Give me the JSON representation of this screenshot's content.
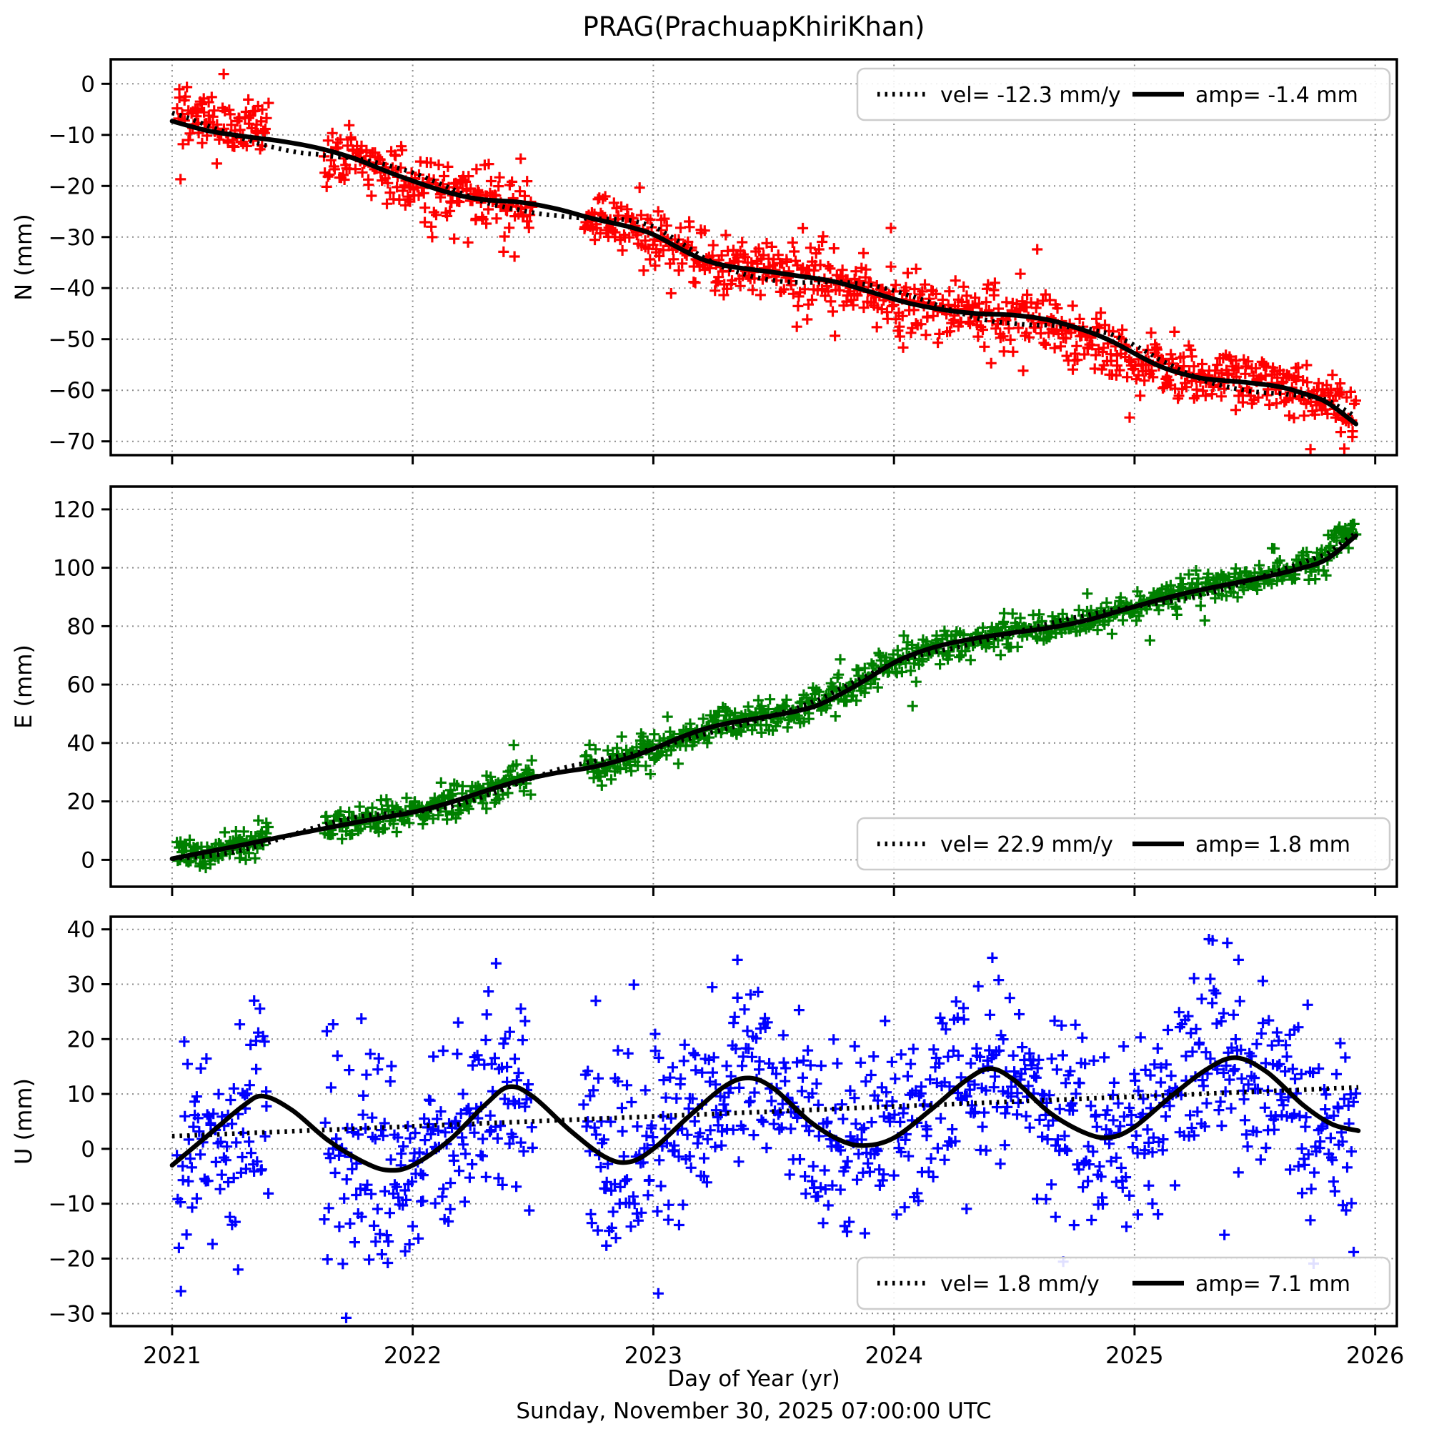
{
  "title": "PRAG(PrachuapKhiriKhan)",
  "xlabel": "Day of Year (yr)",
  "caption": "Sunday, November 30, 2025 07:00:00 UTC",
  "x_ticks": [
    2021,
    2022,
    2023,
    2024,
    2025,
    2026
  ],
  "x_range": [
    2020.745,
    2026.09
  ],
  "colors": {
    "n_marker": "#ff0000",
    "e_marker": "#008000",
    "u_marker": "#0000ff",
    "fit_line": "#000000",
    "grid": "#8a8a8a",
    "legend_edge": "#cccccc"
  },
  "chart_data": [
    {
      "type": "scatter+fit",
      "series_name": "N",
      "ylabel": "N (mm)",
      "ylim": [
        -72.7,
        4.8
      ],
      "yticks": [
        0,
        -10,
        -20,
        -30,
        -40,
        -50,
        -60,
        -70
      ],
      "marker_color": "#ff0000",
      "vel_mm_per_yr": -12.3,
      "seasonal_amp_mm": -1.4,
      "legend": {
        "position": "tr",
        "vel_label": "vel= -12.3 mm/y",
        "amp_label": "amp= -1.4 mm"
      },
      "fit_curve": [
        [
          2021.0,
          -7.3
        ],
        [
          2021.15,
          -9.2
        ],
        [
          2021.3,
          -10.3
        ],
        [
          2021.45,
          -11.2
        ],
        [
          2021.6,
          -12.5
        ],
        [
          2021.75,
          -14.5
        ],
        [
          2021.9,
          -17.3
        ],
        [
          2022.0,
          -19.0
        ],
        [
          2022.1,
          -20.6
        ],
        [
          2022.2,
          -21.9
        ],
        [
          2022.3,
          -22.7
        ],
        [
          2022.45,
          -23.2
        ],
        [
          2022.6,
          -24.5
        ],
        [
          2022.75,
          -26.4
        ],
        [
          2022.9,
          -28.0
        ],
        [
          2023.0,
          -29.5
        ],
        [
          2023.1,
          -32.0
        ],
        [
          2023.2,
          -34.3
        ],
        [
          2023.3,
          -35.6
        ],
        [
          2023.4,
          -36.3
        ],
        [
          2023.5,
          -36.9
        ],
        [
          2023.6,
          -37.6
        ],
        [
          2023.75,
          -38.7
        ],
        [
          2023.9,
          -40.7
        ],
        [
          2024.05,
          -42.8
        ],
        [
          2024.2,
          -44.2
        ],
        [
          2024.35,
          -45.0
        ],
        [
          2024.5,
          -45.3
        ],
        [
          2024.65,
          -46.3
        ],
        [
          2024.8,
          -48.4
        ],
        [
          2024.9,
          -50.3
        ],
        [
          2025.0,
          -52.8
        ],
        [
          2025.1,
          -55.2
        ],
        [
          2025.2,
          -56.8
        ],
        [
          2025.3,
          -57.8
        ],
        [
          2025.45,
          -58.4
        ],
        [
          2025.6,
          -59.3
        ],
        [
          2025.7,
          -60.6
        ],
        [
          2025.8,
          -62.4
        ],
        [
          2025.92,
          -66.6
        ]
      ],
      "trend": {
        "type": "seasonal_offset",
        "amp": 1.6,
        "phase": 2021.0
      },
      "scatter": {
        "seed": 101,
        "t_start": 2021.02,
        "t_end": 2025.92,
        "step": 0.0042,
        "sigma": 2.9,
        "outlier_prob": 0.05,
        "outlier_scale": 2.2,
        "gaps": [
          [
            2021.4,
            2021.63
          ],
          [
            2022.5,
            2022.71
          ]
        ],
        "bias": [
          [
            2021.02,
            2021.4,
            2.2
          ],
          [
            2024.72,
            2025.05,
            -2.0
          ]
        ]
      }
    },
    {
      "type": "scatter+fit",
      "series_name": "E",
      "ylabel": "E (mm)",
      "ylim": [
        -9.2,
        127.8
      ],
      "yticks": [
        120,
        100,
        80,
        60,
        40,
        20,
        0
      ],
      "marker_color": "#008000",
      "vel_mm_per_yr": 22.9,
      "seasonal_amp_mm": 1.8,
      "legend": {
        "position": "br",
        "vel_label": "vel= 22.9 mm/y",
        "amp_label": "amp= 1.8 mm"
      },
      "fit_curve": [
        [
          2021.0,
          0.4
        ],
        [
          2021.15,
          2.8
        ],
        [
          2021.3,
          5.2
        ],
        [
          2021.45,
          7.8
        ],
        [
          2021.6,
          10.2
        ],
        [
          2021.75,
          12.6
        ],
        [
          2021.9,
          14.8
        ],
        [
          2022.0,
          16.3
        ],
        [
          2022.15,
          19.5
        ],
        [
          2022.3,
          23.5
        ],
        [
          2022.45,
          27.2
        ],
        [
          2022.6,
          29.8
        ],
        [
          2022.75,
          31.8
        ],
        [
          2022.9,
          35.0
        ],
        [
          2023.0,
          38.0
        ],
        [
          2023.1,
          41.5
        ],
        [
          2023.2,
          44.5
        ],
        [
          2023.3,
          46.6
        ],
        [
          2023.45,
          48.7
        ],
        [
          2023.6,
          51.0
        ],
        [
          2023.7,
          53.5
        ],
        [
          2023.85,
          60.0
        ],
        [
          2024.0,
          67.5
        ],
        [
          2024.1,
          71.0
        ],
        [
          2024.2,
          73.5
        ],
        [
          2024.35,
          76.0
        ],
        [
          2024.5,
          77.8
        ],
        [
          2024.65,
          79.5
        ],
        [
          2024.8,
          82.0
        ],
        [
          2024.95,
          85.5
        ],
        [
          2025.1,
          89.0
        ],
        [
          2025.25,
          92.0
        ],
        [
          2025.4,
          94.5
        ],
        [
          2025.55,
          97.0
        ],
        [
          2025.7,
          100.0
        ],
        [
          2025.8,
          103.0
        ],
        [
          2025.92,
          111.0
        ]
      ],
      "trend": {
        "type": "seasonal_offset",
        "amp": 1.8,
        "phase": 2020.75
      },
      "scatter": {
        "seed": 202,
        "t_start": 2021.02,
        "t_end": 2025.92,
        "step": 0.0042,
        "sigma": 2.7,
        "outlier_prob": 0.05,
        "outlier_scale": 2.2,
        "gaps": [
          [
            2021.4,
            2021.63
          ],
          [
            2022.5,
            2022.71
          ]
        ],
        "bias": [
          [
            2025.8,
            2025.93,
            4.0
          ]
        ]
      }
    },
    {
      "type": "scatter+fit",
      "series_name": "U",
      "ylabel": "U (mm)",
      "ylim": [
        -32.3,
        42.3
      ],
      "yticks": [
        40,
        30,
        20,
        10,
        0,
        -10,
        -20,
        -30
      ],
      "marker_color": "#0000ff",
      "vel_mm_per_yr": 1.8,
      "seasonal_amp_mm": 7.1,
      "legend": {
        "position": "br",
        "vel_label": "vel= 1.8 mm/y",
        "amp_label": "amp= 7.1 mm"
      },
      "fit_curve": [
        [
          2021.0,
          -3.0
        ],
        [
          2021.15,
          2.5
        ],
        [
          2021.3,
          8.0
        ],
        [
          2021.38,
          9.6
        ],
        [
          2021.5,
          7.0
        ],
        [
          2021.65,
          1.5
        ],
        [
          2021.8,
          -2.5
        ],
        [
          2021.9,
          -3.9
        ],
        [
          2022.0,
          -3.0
        ],
        [
          2022.15,
          1.5
        ],
        [
          2022.3,
          8.0
        ],
        [
          2022.4,
          11.3
        ],
        [
          2022.5,
          9.5
        ],
        [
          2022.65,
          3.5
        ],
        [
          2022.8,
          -1.5
        ],
        [
          2022.9,
          -2.4
        ],
        [
          2023.0,
          0.0
        ],
        [
          2023.15,
          6.0
        ],
        [
          2023.3,
          11.5
        ],
        [
          2023.4,
          12.9
        ],
        [
          2023.5,
          11.0
        ],
        [
          2023.65,
          5.0
        ],
        [
          2023.78,
          1.5
        ],
        [
          2023.88,
          0.6
        ],
        [
          2024.0,
          2.0
        ],
        [
          2024.15,
          7.0
        ],
        [
          2024.3,
          12.5
        ],
        [
          2024.4,
          14.6
        ],
        [
          2024.5,
          12.5
        ],
        [
          2024.65,
          6.5
        ],
        [
          2024.8,
          2.8
        ],
        [
          2024.9,
          2.1
        ],
        [
          2025.0,
          4.0
        ],
        [
          2025.15,
          9.5
        ],
        [
          2025.3,
          14.5
        ],
        [
          2025.42,
          16.6
        ],
        [
          2025.55,
          14.0
        ],
        [
          2025.7,
          8.0
        ],
        [
          2025.82,
          4.5
        ],
        [
          2025.93,
          3.3
        ]
      ],
      "trend": {
        "type": "line",
        "points": [
          [
            2021.0,
            2.3
          ],
          [
            2025.93,
            11.2
          ]
        ]
      },
      "scatter": {
        "seed": 303,
        "t_start": 2021.02,
        "t_end": 2025.92,
        "step": 0.0042,
        "sigma": 8.8,
        "outlier_prob": 0.04,
        "outlier_scale": 1.6,
        "gaps": [
          [
            2021.4,
            2021.63
          ],
          [
            2022.5,
            2022.71
          ]
        ],
        "bias": []
      }
    }
  ]
}
